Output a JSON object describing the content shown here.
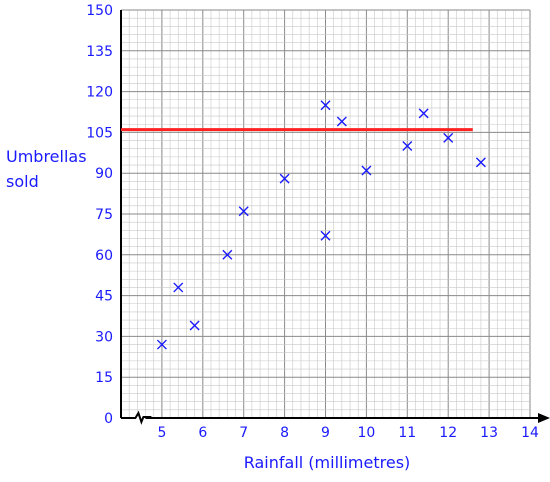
{
  "chart_data": {
    "type": "scatter",
    "xlabel": "Rainfall (millimetres)",
    "ylabel": [
      "Umbrellas",
      "sold"
    ],
    "xlim": [
      4,
      14
    ],
    "ylim": [
      0,
      150
    ],
    "x_ticks": [
      5,
      6,
      7,
      8,
      9,
      10,
      11,
      12,
      13,
      14
    ],
    "y_ticks": [
      0,
      15,
      30,
      45,
      60,
      75,
      90,
      105,
      120,
      135,
      150
    ],
    "grid": true,
    "axis_break": "x-axis near origin",
    "marker": "x",
    "colors": {
      "points": "#1a1aff",
      "labels": "#1a1aff",
      "reference_line": "#ff2020",
      "grid_minor": "#c8c8c8",
      "grid_major": "#8a8a8a"
    },
    "points": [
      {
        "x": 5.0,
        "y": 27
      },
      {
        "x": 5.4,
        "y": 48
      },
      {
        "x": 5.8,
        "y": 34
      },
      {
        "x": 6.6,
        "y": 60
      },
      {
        "x": 7.0,
        "y": 76
      },
      {
        "x": 8.0,
        "y": 88
      },
      {
        "x": 9.0,
        "y": 67
      },
      {
        "x": 9.0,
        "y": 115
      },
      {
        "x": 9.4,
        "y": 109
      },
      {
        "x": 10.0,
        "y": 91
      },
      {
        "x": 11.0,
        "y": 100
      },
      {
        "x": 11.4,
        "y": 112
      },
      {
        "x": 12.0,
        "y": 103
      },
      {
        "x": 12.8,
        "y": 94
      }
    ],
    "reference_line": {
      "y": 106,
      "x_start": 4,
      "x_end": 12.6
    }
  }
}
